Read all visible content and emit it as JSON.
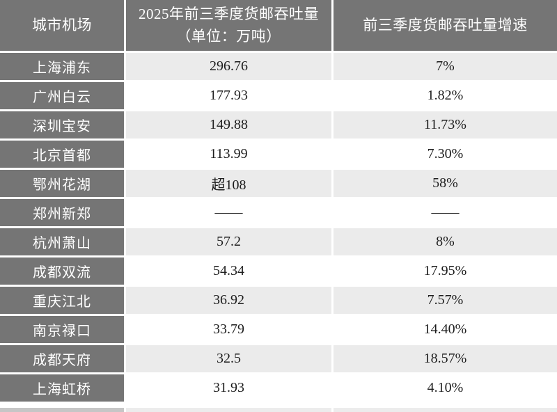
{
  "colors": {
    "header_bg": "#757575",
    "left_column_bg": "#757575",
    "row_alt_bg": "#ebebeb",
    "row_bg": "#ffffff",
    "header_text": "#ffffff",
    "body_text": "#1d1d1d",
    "bottom_strip_left": "#c6c6c6",
    "bottom_strip_right": "#ececec"
  },
  "table": {
    "header": {
      "airport": "城市机场",
      "throughput_line1": "2025年前三季度货邮吞吐量",
      "throughput_line2": "（单位：万吨）",
      "growth": "前三季度货邮吞吐量增速"
    },
    "rows": [
      {
        "airport": "上海浦东",
        "throughput": "296.76",
        "growth": "7%"
      },
      {
        "airport": "广州白云",
        "throughput": "177.93",
        "growth": "1.82%"
      },
      {
        "airport": "深圳宝安",
        "throughput": "149.88",
        "growth": "11.73%"
      },
      {
        "airport": "北京首都",
        "throughput": "113.99",
        "growth": "7.30%"
      },
      {
        "airport": "鄂州花湖",
        "throughput": "超108",
        "growth": "58%"
      },
      {
        "airport": "郑州新郑",
        "throughput": "——",
        "growth": "——"
      },
      {
        "airport": "杭州萧山",
        "throughput": "57.2",
        "growth": "8%"
      },
      {
        "airport": "成都双流",
        "throughput": "54.34",
        "growth": "17.95%"
      },
      {
        "airport": "重庆江北",
        "throughput": "36.92",
        "growth": "7.57%"
      },
      {
        "airport": "南京禄口",
        "throughput": "33.79",
        "growth": "14.40%"
      },
      {
        "airport": "成都天府",
        "throughput": "32.5",
        "growth": "18.57%"
      },
      {
        "airport": "上海虹桥",
        "throughput": "31.93",
        "growth": "4.10%"
      }
    ]
  },
  "chart_data": {
    "type": "table",
    "title": "",
    "columns": [
      "城市机场",
      "2025年前三季度货邮吞吐量（单位：万吨）",
      "前三季度货邮吞吐量增速"
    ],
    "rows": [
      [
        "上海浦东",
        "296.76",
        "7%"
      ],
      [
        "广州白云",
        "177.93",
        "1.82%"
      ],
      [
        "深圳宝安",
        "149.88",
        "11.73%"
      ],
      [
        "北京首都",
        "113.99",
        "7.30%"
      ],
      [
        "鄂州花湖",
        "超108",
        "58%"
      ],
      [
        "郑州新郑",
        "——",
        "——"
      ],
      [
        "杭州萧山",
        "57.2",
        "8%"
      ],
      [
        "成都双流",
        "54.34",
        "17.95%"
      ],
      [
        "重庆江北",
        "36.92",
        "7.57%"
      ],
      [
        "南京禄口",
        "33.79",
        "14.40%"
      ],
      [
        "成都天府",
        "32.5",
        "18.57%"
      ],
      [
        "上海虹桥",
        "31.93",
        "4.10%"
      ]
    ],
    "layout": {
      "left_column_style": "dark-gray header cells, white text",
      "body_row_striping": "odd rows light gray, even rows white"
    }
  }
}
